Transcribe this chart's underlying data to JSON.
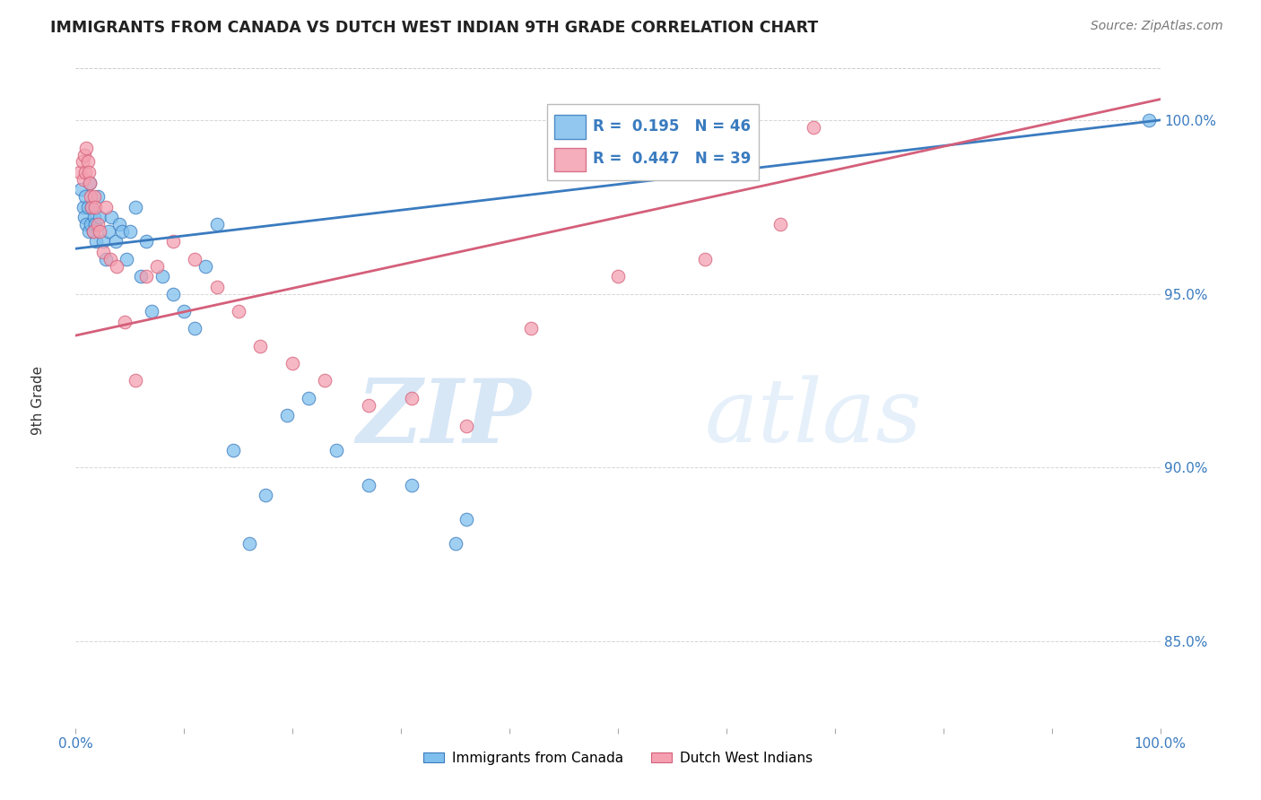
{
  "title": "IMMIGRANTS FROM CANADA VS DUTCH WEST INDIAN 9TH GRADE CORRELATION CHART",
  "source": "Source: ZipAtlas.com",
  "ylabel": "9th Grade",
  "ytick_labels": [
    "100.0%",
    "95.0%",
    "90.0%",
    "85.0%"
  ],
  "ytick_values": [
    1.0,
    0.95,
    0.9,
    0.85
  ],
  "xlim": [
    0.0,
    1.0
  ],
  "ylim": [
    0.825,
    1.015
  ],
  "legend1_label": "Immigrants from Canada",
  "legend2_label": "Dutch West Indians",
  "R_blue": 0.195,
  "N_blue": 46,
  "R_pink": 0.447,
  "N_pink": 39,
  "blue_color": "#7fbfed",
  "pink_color": "#f4a0b0",
  "trendline_blue": "#3a7bbf",
  "trendline_pink": "#d45f7a",
  "blue_x": [
    0.005,
    0.007,
    0.008,
    0.009,
    0.01,
    0.011,
    0.012,
    0.013,
    0.014,
    0.015,
    0.016,
    0.017,
    0.018,
    0.019,
    0.02,
    0.022,
    0.025,
    0.028,
    0.03,
    0.033,
    0.037,
    0.04,
    0.043,
    0.047,
    0.05,
    0.055,
    0.06,
    0.065,
    0.07,
    0.08,
    0.09,
    0.1,
    0.11,
    0.12,
    0.13,
    0.145,
    0.16,
    0.175,
    0.195,
    0.215,
    0.24,
    0.27,
    0.31,
    0.35,
    0.36,
    0.99
  ],
  "blue_y": [
    0.98,
    0.975,
    0.972,
    0.978,
    0.97,
    0.975,
    0.968,
    0.982,
    0.97,
    0.975,
    0.968,
    0.972,
    0.97,
    0.965,
    0.978,
    0.972,
    0.965,
    0.96,
    0.968,
    0.972,
    0.965,
    0.97,
    0.968,
    0.96,
    0.968,
    0.975,
    0.955,
    0.965,
    0.945,
    0.955,
    0.95,
    0.945,
    0.94,
    0.958,
    0.97,
    0.905,
    0.878,
    0.892,
    0.915,
    0.92,
    0.905,
    0.895,
    0.895,
    0.878,
    0.885,
    1.0
  ],
  "pink_x": [
    0.004,
    0.006,
    0.007,
    0.008,
    0.009,
    0.01,
    0.011,
    0.012,
    0.013,
    0.014,
    0.015,
    0.016,
    0.017,
    0.018,
    0.02,
    0.022,
    0.025,
    0.028,
    0.032,
    0.038,
    0.045,
    0.055,
    0.065,
    0.075,
    0.09,
    0.11,
    0.13,
    0.15,
    0.17,
    0.2,
    0.23,
    0.27,
    0.31,
    0.36,
    0.42,
    0.5,
    0.58,
    0.65,
    0.68
  ],
  "pink_y": [
    0.985,
    0.988,
    0.983,
    0.99,
    0.985,
    0.992,
    0.988,
    0.985,
    0.982,
    0.978,
    0.975,
    0.968,
    0.978,
    0.975,
    0.97,
    0.968,
    0.962,
    0.975,
    0.96,
    0.958,
    0.942,
    0.925,
    0.955,
    0.958,
    0.965,
    0.96,
    0.952,
    0.945,
    0.935,
    0.93,
    0.925,
    0.918,
    0.92,
    0.912,
    0.94,
    0.955,
    0.96,
    0.97,
    0.998
  ],
  "watermark_zip": "ZIP",
  "watermark_atlas": "atlas",
  "background_color": "#ffffff",
  "grid_color": "#cccccc"
}
